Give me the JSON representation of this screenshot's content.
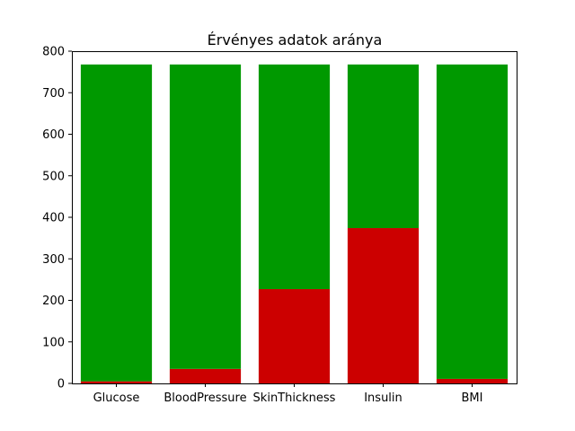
{
  "chart_data": {
    "type": "bar",
    "stacked": true,
    "title": "Érvényes adatok aránya",
    "xlabel": "",
    "ylabel": "",
    "ylim": [
      0,
      800
    ],
    "yticks": [
      0,
      100,
      200,
      300,
      400,
      500,
      600,
      700,
      800
    ],
    "grid": false,
    "categories": [
      "Glucose",
      "BloodPressure",
      "SkinThickness",
      "Insulin",
      "BMI"
    ],
    "series": [
      {
        "values": [
          5,
          35,
          227,
          374,
          11
        ],
        "color": "#cc0000"
      },
      {
        "values": [
          763,
          733,
          541,
          394,
          757
        ],
        "color": "#009900"
      }
    ]
  }
}
